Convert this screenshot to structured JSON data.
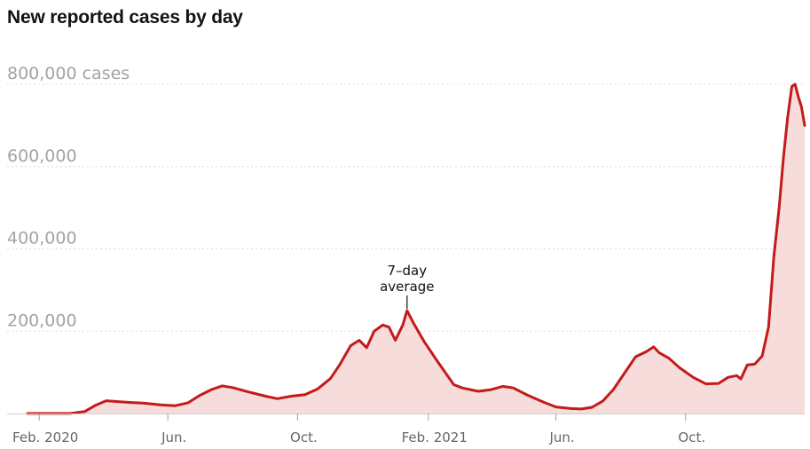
{
  "chart_data": {
    "type": "area",
    "title": "New reported cases by day",
    "series_label": "7-day average",
    "y_unit": "cases",
    "ylim": [
      0,
      800000
    ],
    "xlim": [
      "2020-01-21",
      "2022-01-21"
    ],
    "grid": true,
    "y_ticks": [
      {
        "value": 800000,
        "label": "800,000 cases"
      },
      {
        "value": 600000,
        "label": "600,000"
      },
      {
        "value": 400000,
        "label": "400,000"
      },
      {
        "value": 200000,
        "label": "200,000"
      }
    ],
    "x_ticks": [
      {
        "date": "2020-02-01",
        "label": "Feb. 2020"
      },
      {
        "date": "2020-06-01",
        "label": "Jun."
      },
      {
        "date": "2020-10-01",
        "label": "Oct."
      },
      {
        "date": "2021-02-01",
        "label": "Feb. 2021"
      },
      {
        "date": "2021-06-01",
        "label": "Jun."
      },
      {
        "date": "2021-10-01",
        "label": "Oct."
      }
    ],
    "annotation": {
      "text": [
        "7–day",
        "average"
      ],
      "date": "2021-01-12",
      "value": 250000
    },
    "colors": {
      "line": "#c41a1a",
      "fill": "#f7dcdc"
    },
    "points": [
      [
        "2020-01-21",
        0
      ],
      [
        "2020-02-15",
        0
      ],
      [
        "2020-03-01",
        0
      ],
      [
        "2020-03-15",
        5000
      ],
      [
        "2020-03-25",
        20000
      ],
      [
        "2020-04-04",
        31000
      ],
      [
        "2020-04-15",
        29000
      ],
      [
        "2020-04-26",
        27000
      ],
      [
        "2020-05-10",
        25000
      ],
      [
        "2020-05-25",
        21000
      ],
      [
        "2020-06-08",
        19000
      ],
      [
        "2020-06-20",
        26000
      ],
      [
        "2020-07-01",
        44000
      ],
      [
        "2020-07-12",
        58000
      ],
      [
        "2020-07-22",
        67000
      ],
      [
        "2020-08-01",
        63000
      ],
      [
        "2020-08-15",
        53000
      ],
      [
        "2020-09-01",
        42000
      ],
      [
        "2020-09-12",
        36000
      ],
      [
        "2020-09-25",
        42000
      ],
      [
        "2020-10-08",
        46000
      ],
      [
        "2020-10-20",
        60000
      ],
      [
        "2020-11-01",
        85000
      ],
      [
        "2020-11-10",
        120000
      ],
      [
        "2020-11-20",
        165000
      ],
      [
        "2020-11-28",
        178000
      ],
      [
        "2020-12-05",
        160000
      ],
      [
        "2020-12-12",
        200000
      ],
      [
        "2020-12-20",
        215000
      ],
      [
        "2020-12-26",
        210000
      ],
      [
        "2021-01-01",
        178000
      ],
      [
        "2021-01-08",
        215000
      ],
      [
        "2021-01-12",
        250000
      ],
      [
        "2021-01-18",
        220000
      ],
      [
        "2021-01-28",
        175000
      ],
      [
        "2021-02-10",
        125000
      ],
      [
        "2021-02-25",
        70000
      ],
      [
        "2021-03-05",
        62000
      ],
      [
        "2021-03-20",
        54000
      ],
      [
        "2021-04-01",
        58000
      ],
      [
        "2021-04-12",
        66000
      ],
      [
        "2021-04-22",
        62000
      ],
      [
        "2021-05-05",
        45000
      ],
      [
        "2021-05-20",
        28000
      ],
      [
        "2021-06-01",
        16000
      ],
      [
        "2021-06-15",
        12000
      ],
      [
        "2021-06-25",
        11000
      ],
      [
        "2021-07-05",
        15000
      ],
      [
        "2021-07-15",
        30000
      ],
      [
        "2021-07-25",
        58000
      ],
      [
        "2021-08-05",
        100000
      ],
      [
        "2021-08-15",
        138000
      ],
      [
        "2021-08-25",
        150000
      ],
      [
        "2021-09-01",
        162000
      ],
      [
        "2021-09-06",
        148000
      ],
      [
        "2021-09-15",
        135000
      ],
      [
        "2021-09-25",
        112000
      ],
      [
        "2021-10-08",
        88000
      ],
      [
        "2021-10-20",
        72000
      ],
      [
        "2021-11-01",
        73000
      ],
      [
        "2021-11-10",
        88000
      ],
      [
        "2021-11-18",
        92000
      ],
      [
        "2021-11-22",
        84000
      ],
      [
        "2021-11-28",
        118000
      ],
      [
        "2021-12-05",
        120000
      ],
      [
        "2021-12-12",
        140000
      ],
      [
        "2021-12-18",
        210000
      ],
      [
        "2021-12-23",
        380000
      ],
      [
        "2021-12-28",
        500000
      ],
      [
        "2022-01-01",
        620000
      ],
      [
        "2022-01-05",
        720000
      ],
      [
        "2022-01-09",
        795000
      ],
      [
        "2022-01-12",
        800000
      ],
      [
        "2022-01-15",
        770000
      ],
      [
        "2022-01-18",
        745000
      ],
      [
        "2022-01-21",
        700000
      ]
    ]
  }
}
